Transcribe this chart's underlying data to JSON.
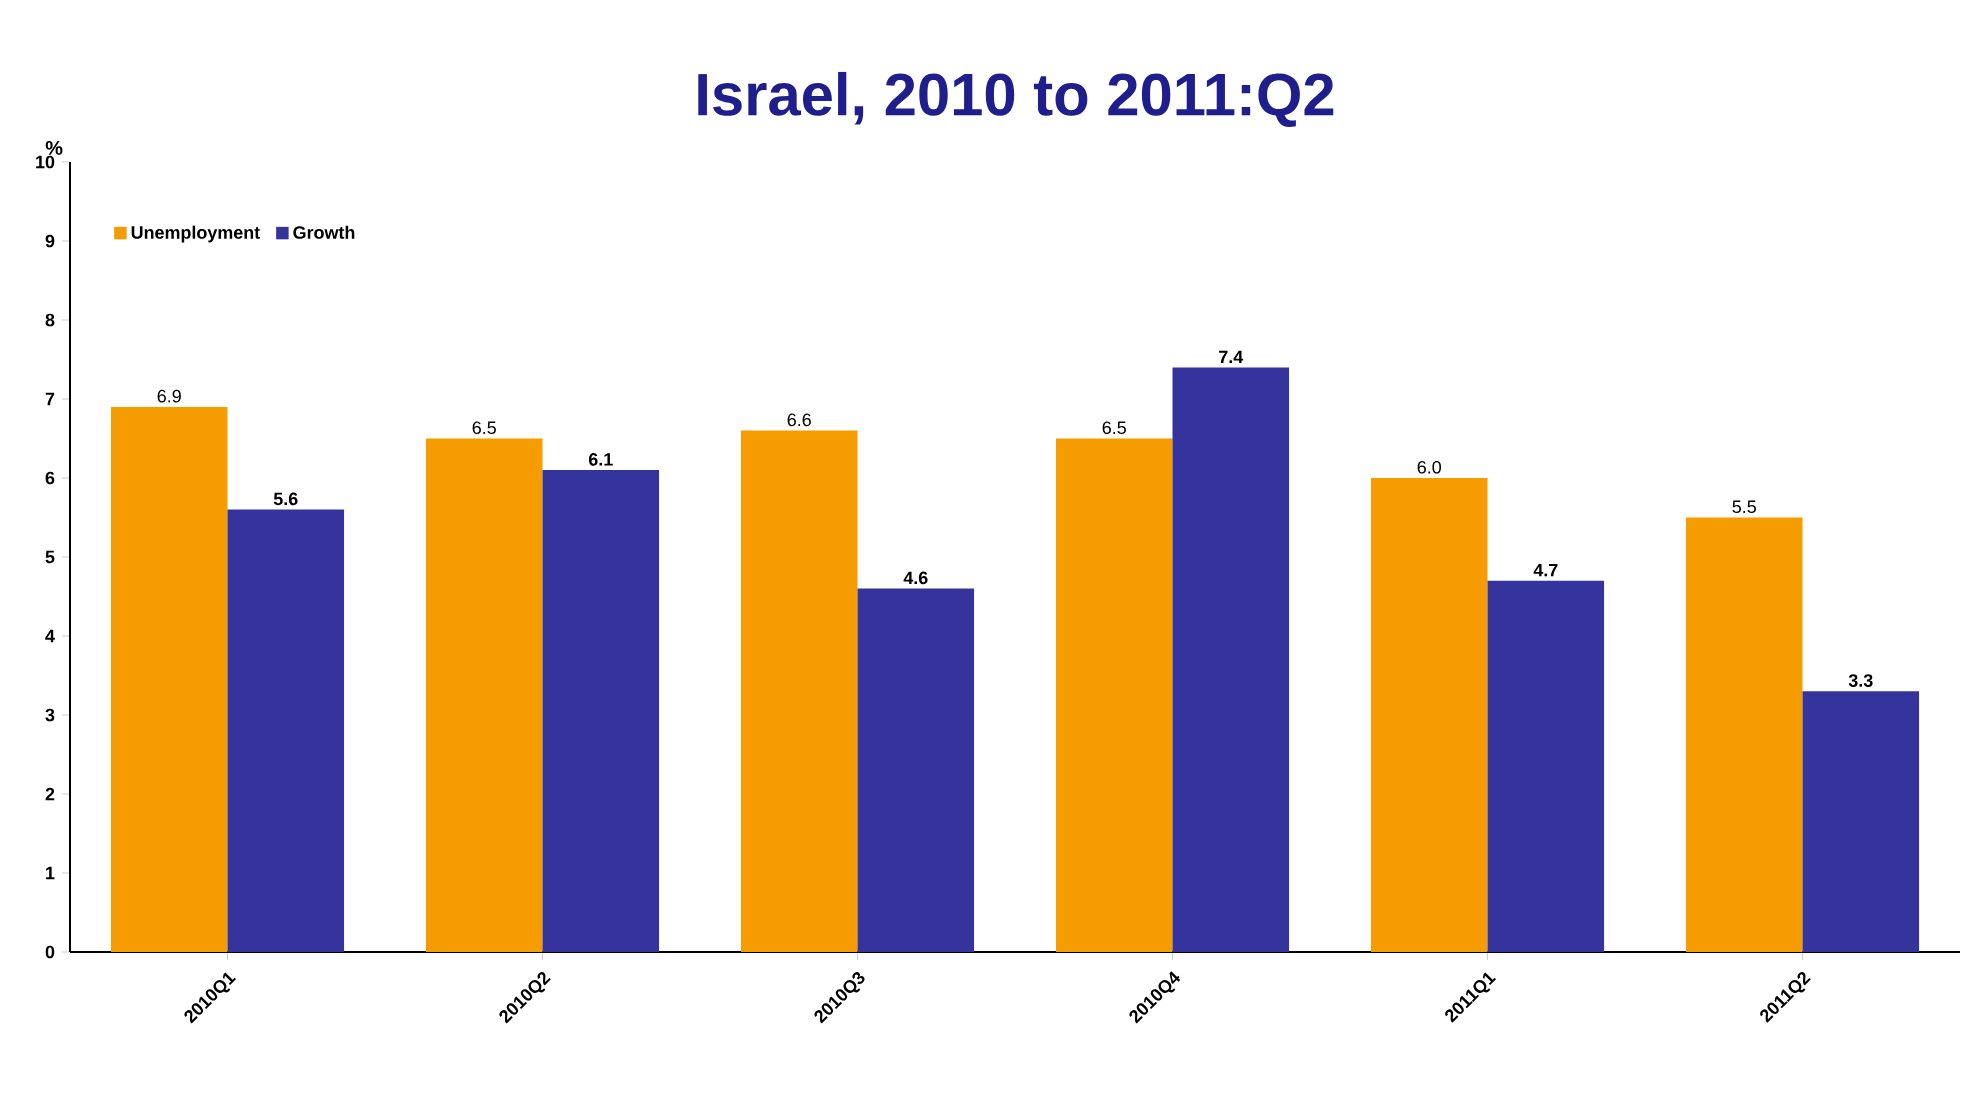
{
  "chart_data": {
    "type": "bar",
    "title": "Israel, 2010 to 2011:Q2",
    "ylabel": "%",
    "categories": [
      "2010Q1",
      "2010Q2",
      "2010Q3",
      "2010Q4",
      "2011Q1",
      "2011Q2"
    ],
    "series": [
      {
        "name": "Unemployment",
        "color": "#f59c00",
        "values": [
          6.9,
          6.5,
          6.6,
          6.5,
          6.0,
          5.5
        ],
        "value_labels": [
          "6.9",
          "6.5",
          "6.6",
          "6.5",
          "6.0",
          "5.5"
        ]
      },
      {
        "name": "Growth",
        "color": "#34349c",
        "values": [
          5.6,
          6.1,
          4.6,
          7.4,
          4.7,
          3.3
        ],
        "value_labels": [
          "5.6",
          "6.1",
          "4.6",
          "7.4",
          "4.7",
          "3.3"
        ]
      }
    ],
    "ylim": [
      0,
      10
    ],
    "yticks": [
      0,
      1,
      2,
      3,
      4,
      5,
      6,
      7,
      8,
      9,
      10
    ],
    "legend": "top left"
  }
}
